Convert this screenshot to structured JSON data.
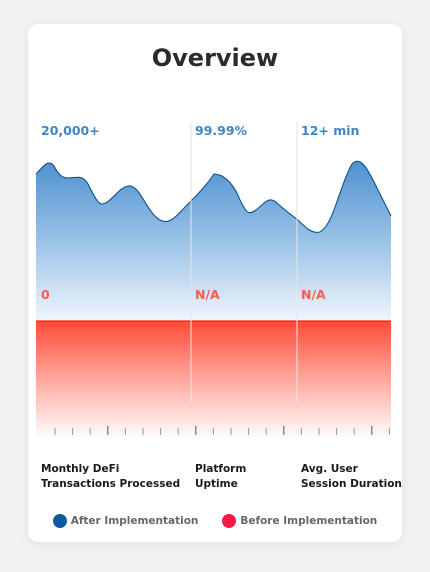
{
  "chart_data": {
    "type": "area",
    "title": "Overview",
    "categories": [
      "Monthly DeFi Transactions Processed",
      "Platform Uptime",
      "Avg. User Session Duration"
    ],
    "category_lines": [
      [
        "Monthly DeFi",
        "Transactions Processed"
      ],
      [
        "Platform",
        "Uptime"
      ],
      [
        "Avg. User",
        "Session Duration"
      ]
    ],
    "series": [
      {
        "name": "After Implementation",
        "labels": [
          "20,000+",
          "99.99%",
          "12+ min"
        ],
        "color": "#0d5a9e"
      },
      {
        "name": "Before Implementation",
        "labels": [
          "0",
          "N/A",
          "N/A"
        ],
        "color": "#ff1744"
      }
    ],
    "legend_position": "bottom",
    "grid": false
  }
}
